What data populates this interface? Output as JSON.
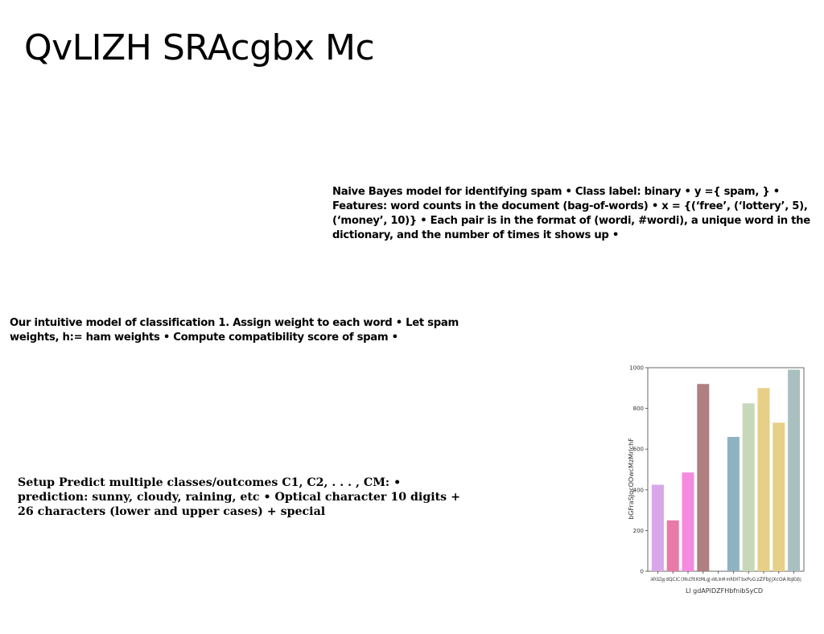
{
  "slide": {
    "title": "QvLIZH SRAcgbx Mc",
    "paragraphs": [
      "Naive Bayes model for identifying spam • Class label: binary • y ={ spam, } • Features: word counts in the document (bag-of-words) • x = {(‘free’, (‘lottery’, 5), (‘money’, 10)} • Each pair is in the format of (wordi, #wordi), a unique word in the dictionary, and the number of times it shows up •",
      "Our intuitive model of classification 1. Assign weight to each word • Let spam weights, h:= ham weights • Compute compatibility score of spam •",
      "Setup Predict multiple classes/outcomes C1, C2, . . . , CM: • prediction: sunny, cloudy, raining, etc • Optical character 10 digits + 26 characters (lower and upper cases) + special"
    ]
  },
  "chart_data": {
    "type": "bar",
    "categories": [
      "iAfXiSZgg",
      "dQCiC",
      "CMhuCPB",
      "KtMLgJ",
      "vWLlmM",
      "mREHT",
      "bxPuG",
      "zZFbJ",
      "jXcOA",
      "lMzgBDsfJq"
    ],
    "values": [
      425,
      250,
      485,
      920,
      0,
      660,
      825,
      900,
      730,
      990
    ],
    "colors": [
      "#d9a6e8",
      "#e87aa8",
      "#f48be0",
      "#ae8080",
      "#9aaec0",
      "#8fb3c0",
      "#c6d8b8",
      "#e8cf88",
      "#e8cf88",
      "#a9bfc0"
    ],
    "xlabel": "Ll gdAPIDZFHbfnibSyCD",
    "ylabel": "bGFraSJqcOOwcMzMrlchF",
    "yticks": [
      0,
      200,
      400,
      600,
      800,
      1000
    ],
    "ylim": [
      0,
      1000
    ],
    "grid": false
  }
}
